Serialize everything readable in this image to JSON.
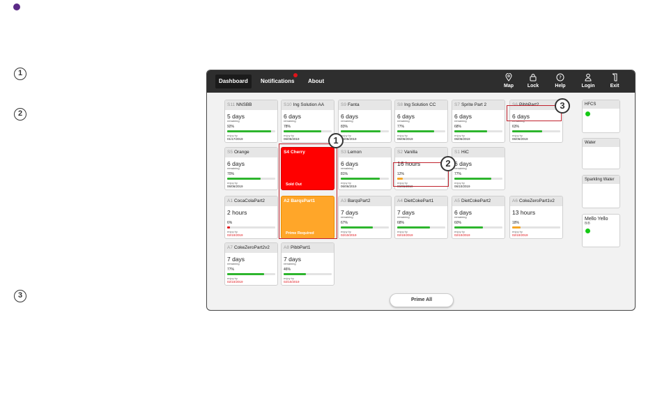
{
  "markers": {
    "step1": "1",
    "step2": "2",
    "step3": "3"
  },
  "nav": {
    "tabs": [
      {
        "label": "Dashboard"
      },
      {
        "label": "Notifications"
      },
      {
        "label": "About"
      }
    ],
    "tools": [
      {
        "label": "Map",
        "icon": "map-pin-icon"
      },
      {
        "label": "Lock",
        "icon": "lock-icon"
      },
      {
        "label": "Help",
        "icon": "help-icon"
      },
      {
        "label": "Login",
        "icon": "user-icon"
      },
      {
        "label": "Exit",
        "icon": "exit-icon"
      }
    ]
  },
  "cards": [
    {
      "pos": "S11",
      "name": "NNSBB",
      "big": "5 days",
      "rem": "remaining",
      "pct": "92%",
      "level": 0.92,
      "enjoy": "enjoy by",
      "date": "01/17/2019",
      "bar": "#2db52d"
    },
    {
      "pos": "S10",
      "name": "Ing Solution AA",
      "big": "6 days",
      "rem": "remaining",
      "pct": "78%",
      "level": 0.78,
      "enjoy": "enjoy by",
      "date": "06/06/2019",
      "bar": "#2db52d"
    },
    {
      "pos": "S9",
      "name": "Fanta",
      "big": "6 days",
      "rem": "remaining",
      "pct": "83%",
      "level": 0.83,
      "enjoy": "enjoy by",
      "date": "06/06/2019",
      "bar": "#2db52d"
    },
    {
      "pos": "S8",
      "name": "Ing Solution CC",
      "big": "6 days",
      "rem": "remaining",
      "pct": "77%",
      "level": 0.77,
      "enjoy": "enjoy by",
      "date": "06/06/2019",
      "bar": "#2db52d"
    },
    {
      "pos": "S7",
      "name": "Sprite Part 2",
      "big": "6 days",
      "rem": "remaining",
      "pct": "68%",
      "level": 0.68,
      "enjoy": "enjoy by",
      "date": "06/06/2019",
      "bar": "#2db52d"
    },
    {
      "pos": "S6",
      "name": "PibbPart2",
      "big": "6 days",
      "rem": "remaining",
      "pct": "63%",
      "level": 0.63,
      "enjoy": "enjoy by",
      "date": "06/06/2019",
      "bar": "#2db52d"
    },
    {
      "pos": "S5",
      "name": "Orange",
      "big": "6 days",
      "rem": "remaining",
      "pct": "70%",
      "level": 0.7,
      "enjoy": "enjoy by",
      "date": "06/06/2019",
      "bar": "#2db52d"
    },
    {
      "pos": "S4",
      "name": "Cherry",
      "status": "Sold Out",
      "type": "soldout"
    },
    {
      "pos": "S3",
      "name": "Lemon",
      "big": "6 days",
      "rem": "remaining",
      "pct": "81%",
      "level": 0.81,
      "enjoy": "enjoy by",
      "date": "06/06/2019",
      "bar": "#2db52d"
    },
    {
      "pos": "S2",
      "name": "Vanilla",
      "big": "16 hours",
      "rem": "",
      "pct": "12%",
      "level": 0.12,
      "enjoy": "enjoy by",
      "date": "06/06/2019",
      "bar": "#f5a623"
    },
    {
      "pos": "S1",
      "name": "HiC",
      "big": "6 days",
      "rem": "remaining",
      "pct": "77%",
      "level": 0.77,
      "enjoy": "enjoy by",
      "date": "06/10/2019",
      "bar": "#2db52d"
    },
    {
      "pos": "A1",
      "name": "CocaColaPart2",
      "big": "2 hours",
      "rem": "",
      "pct": "6%",
      "level": 0.06,
      "enjoy": "enjoy by",
      "date": "02/10/2019",
      "bar": "#e0141a",
      "red": true
    },
    {
      "pos": "A2",
      "name": "BarqsPart1",
      "status": "Prime Required",
      "type": "prime"
    },
    {
      "pos": "A3",
      "name": "BarqsPart2",
      "big": "7 days",
      "rem": "remaining",
      "pct": "67%",
      "level": 0.67,
      "enjoy": "enjoy by",
      "date": "02/10/2019",
      "bar": "#2db52d",
      "red": true
    },
    {
      "pos": "A4",
      "name": "DietCokePart1",
      "big": "7 days",
      "rem": "remaining",
      "pct": "68%",
      "level": 0.68,
      "enjoy": "enjoy by",
      "date": "02/10/2019",
      "bar": "#2db52d",
      "red": true
    },
    {
      "pos": "A5",
      "name": "DietCokePart2",
      "big": "6 days",
      "rem": "remaining",
      "pct": "60%",
      "level": 0.6,
      "enjoy": "enjoy by",
      "date": "02/10/2019",
      "bar": "#2db52d",
      "red": true
    },
    {
      "pos": "A6",
      "name": "CokeZeroPart1v2",
      "big": "13 hours",
      "rem": "",
      "pct": "18%",
      "level": 0.18,
      "enjoy": "enjoy by",
      "date": "02/10/2019",
      "bar": "#f5a623",
      "red": true
    },
    {
      "pos": "A7",
      "name": "CokeZeroPart2v2",
      "big": "7 days",
      "rem": "remaining",
      "pct": "77%",
      "level": 0.77,
      "enjoy": "enjoy by",
      "date": "02/10/2019",
      "bar": "#2db52d",
      "red": true
    },
    {
      "pos": "A8",
      "name": "PibbPart1",
      "big": "7 days",
      "rem": "remaining",
      "pct": "46%",
      "level": 0.46,
      "enjoy": "enjoy by",
      "date": "02/10/2019",
      "bar": "#2db52d",
      "red": true
    }
  ],
  "side": [
    {
      "name": "HFCS",
      "ok": true
    },
    {
      "name": "Water",
      "ok": false
    },
    {
      "name": "Sparkling Water",
      "ok": false
    },
    {
      "name": "Mello Yello",
      "sub": "BiB",
      "ok": true
    }
  ],
  "callouts": [
    "1",
    "2",
    "3"
  ],
  "prime_all": "Prime All"
}
